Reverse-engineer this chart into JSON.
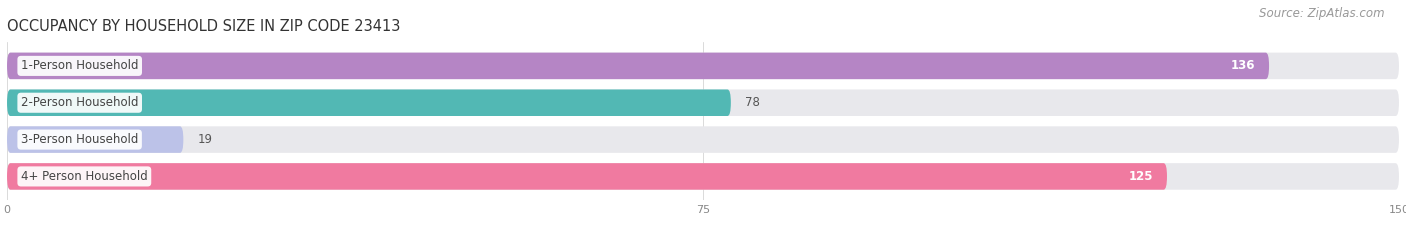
{
  "title": "OCCUPANCY BY HOUSEHOLD SIZE IN ZIP CODE 23413",
  "source": "Source: ZipAtlas.com",
  "categories": [
    "1-Person Household",
    "2-Person Household",
    "3-Person Household",
    "4+ Person Household"
  ],
  "values": [
    136,
    78,
    19,
    125
  ],
  "bar_colors": [
    "#b585c5",
    "#52b8b4",
    "#bcc2e8",
    "#f07aa0"
  ],
  "bar_bg_color": "#e8e8ec",
  "xlim": [
    0,
    150
  ],
  "xticks": [
    0,
    75,
    150
  ],
  "title_fontsize": 10.5,
  "source_fontsize": 8.5,
  "label_fontsize": 8.5,
  "value_fontsize": 8.5,
  "background_color": "#ffffff",
  "bar_height": 0.72,
  "rounding_size": 0.36
}
